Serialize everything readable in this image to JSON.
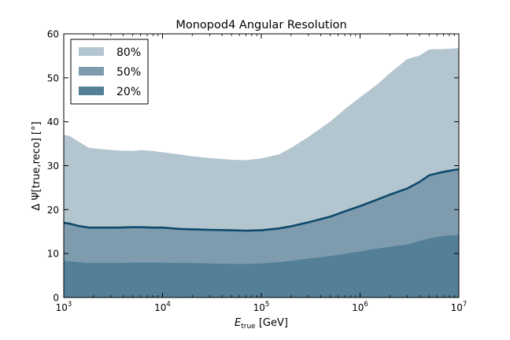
{
  "chart_data": {
    "type": "area",
    "title": "Monopod4 Angular Resolution",
    "xlabel": {
      "base": "E",
      "sub": "true",
      "rest": " [GeV]"
    },
    "ylabel": "Δ Ψ[true,reco] [°]",
    "xscale": "log",
    "xlim": [
      1000,
      10000000
    ],
    "ylim": [
      0,
      60
    ],
    "x_ticks": [
      {
        "value": 1000,
        "base": "10",
        "exp": "3"
      },
      {
        "value": 10000,
        "base": "10",
        "exp": "4"
      },
      {
        "value": 100000,
        "base": "10",
        "exp": "5"
      },
      {
        "value": 1000000,
        "base": "10",
        "exp": "6"
      },
      {
        "value": 10000000,
        "base": "10",
        "exp": "7"
      }
    ],
    "y_ticks": [
      "0",
      "10",
      "20",
      "30",
      "40",
      "50",
      "60"
    ],
    "x": [
      1000,
      1150,
      1400,
      1800,
      2500,
      3500,
      5000,
      6000,
      8000,
      10000,
      15000,
      20000,
      30000,
      50000,
      70000,
      100000,
      150000,
      200000,
      300000,
      500000,
      700000,
      1000000,
      1500000,
      2000000,
      3000000,
      4000000,
      5000000,
      7000000,
      10000000
    ],
    "series": [
      {
        "name": "80%",
        "color": "#b3c5cf",
        "values": [
          37.0,
          36.7,
          35.5,
          34.0,
          33.7,
          33.4,
          33.3,
          33.5,
          33.3,
          33.0,
          32.5,
          32.1,
          31.7,
          31.3,
          31.2,
          31.6,
          32.5,
          34.0,
          36.5,
          40.0,
          42.8,
          45.5,
          48.5,
          51.0,
          54.2,
          55.0,
          56.4,
          56.5,
          56.7
        ]
      },
      {
        "name": "50%",
        "color": "#7f9caf",
        "values": [
          17.0,
          16.8,
          16.3,
          15.9,
          15.9,
          15.9,
          16.0,
          16.0,
          15.9,
          15.9,
          15.6,
          15.5,
          15.4,
          15.3,
          15.2,
          15.3,
          15.7,
          16.2,
          17.1,
          18.4,
          19.6,
          20.8,
          22.3,
          23.4,
          24.8,
          26.3,
          27.8,
          28.6,
          29.2
        ]
      },
      {
        "name": "20%",
        "color": "#537f97",
        "values": [
          8.3,
          8.2,
          8.0,
          7.8,
          7.8,
          7.8,
          7.9,
          7.9,
          7.9,
          7.9,
          7.8,
          7.8,
          7.7,
          7.6,
          7.6,
          7.7,
          8.0,
          8.3,
          8.8,
          9.4,
          9.9,
          10.4,
          11.1,
          11.5,
          12.0,
          12.8,
          13.4,
          14.0,
          14.2
        ]
      }
    ],
    "median_line_color": "#0f4a6c",
    "legend_position": "top-left",
    "grid": false
  }
}
